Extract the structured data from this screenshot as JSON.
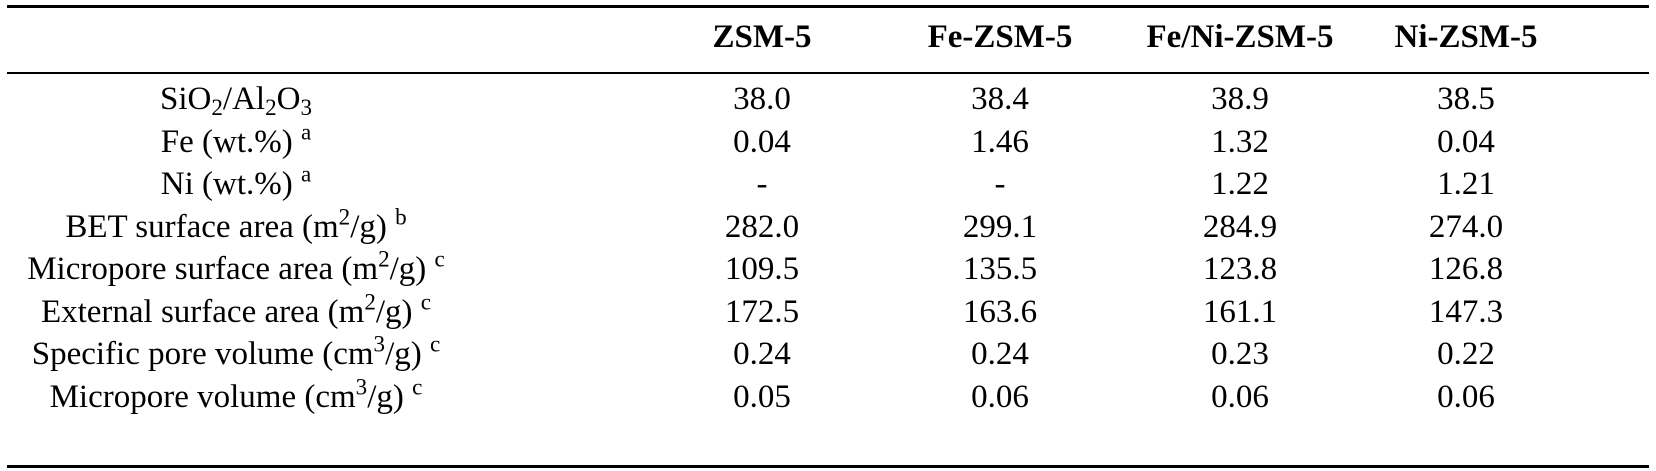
{
  "table": {
    "headers": [
      "",
      "ZSM-5",
      "Fe-ZSM-5",
      "Fe/Ni-ZSM-5",
      "Ni-ZSM-5"
    ],
    "rows": [
      {
        "label": [
          {
            "t": "SiO"
          },
          {
            "t": "2",
            "s": "sub"
          },
          {
            "t": "/Al"
          },
          {
            "t": "2",
            "s": "sub"
          },
          {
            "t": "O"
          },
          {
            "t": "3",
            "s": "sub"
          }
        ],
        "values": [
          "38.0",
          "38.4",
          "38.9",
          "38.5"
        ]
      },
      {
        "label": [
          {
            "t": "Fe (wt.%) "
          },
          {
            "t": "a",
            "s": "sup"
          }
        ],
        "values": [
          "0.04",
          "1.46",
          "1.32",
          "0.04"
        ]
      },
      {
        "label": [
          {
            "t": "Ni (wt.%) "
          },
          {
            "t": "a",
            "s": "sup"
          }
        ],
        "values": [
          "-",
          "-",
          "1.22",
          "1.21"
        ]
      },
      {
        "label": [
          {
            "t": "BET surface area (m"
          },
          {
            "t": "2",
            "s": "sup"
          },
          {
            "t": "/g) "
          },
          {
            "t": "b",
            "s": "sup"
          }
        ],
        "values": [
          "282.0",
          "299.1",
          "284.9",
          "274.0"
        ]
      },
      {
        "label": [
          {
            "t": "Micropore surface area (m"
          },
          {
            "t": "2",
            "s": "sup"
          },
          {
            "t": "/g) "
          },
          {
            "t": "c",
            "s": "sup"
          }
        ],
        "values": [
          "109.5",
          "135.5",
          "123.8",
          "126.8"
        ]
      },
      {
        "label": [
          {
            "t": "External surface area (m"
          },
          {
            "t": "2",
            "s": "sup"
          },
          {
            "t": "/g) "
          },
          {
            "t": "c",
            "s": "sup"
          }
        ],
        "values": [
          "172.5",
          "163.6",
          "161.1",
          "147.3"
        ]
      },
      {
        "label": [
          {
            "t": "Specific pore volume (cm"
          },
          {
            "t": "3",
            "s": "sup"
          },
          {
            "t": "/g) "
          },
          {
            "t": "c",
            "s": "sup"
          }
        ],
        "values": [
          "0.24",
          "0.24",
          "0.23",
          "0.22"
        ]
      },
      {
        "label": [
          {
            "t": "Micropore volume (cm"
          },
          {
            "t": "3",
            "s": "sup"
          },
          {
            "t": "/g) "
          },
          {
            "t": "c",
            "s": "sup"
          }
        ],
        "values": [
          "0.05",
          "0.06",
          "0.06",
          "0.06"
        ]
      }
    ]
  }
}
